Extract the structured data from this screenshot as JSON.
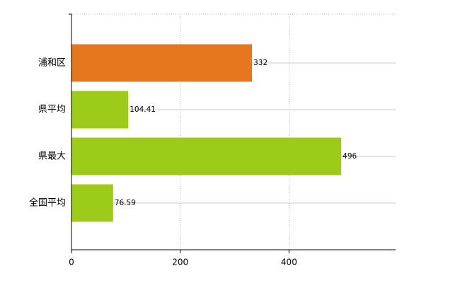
{
  "chart_data": {
    "type": "bar",
    "orientation": "horizontal",
    "categories": [
      "浦和区",
      "県平均",
      "県最大",
      "全国平均"
    ],
    "values": [
      332,
      104.41,
      496,
      76.59
    ],
    "colors": [
      "#e6771f",
      "#9ccb19",
      "#9ccb19",
      "#9ccb19"
    ],
    "xlim": [
      0,
      596
    ],
    "xticks": [
      0,
      200,
      400
    ],
    "grid": true
  }
}
